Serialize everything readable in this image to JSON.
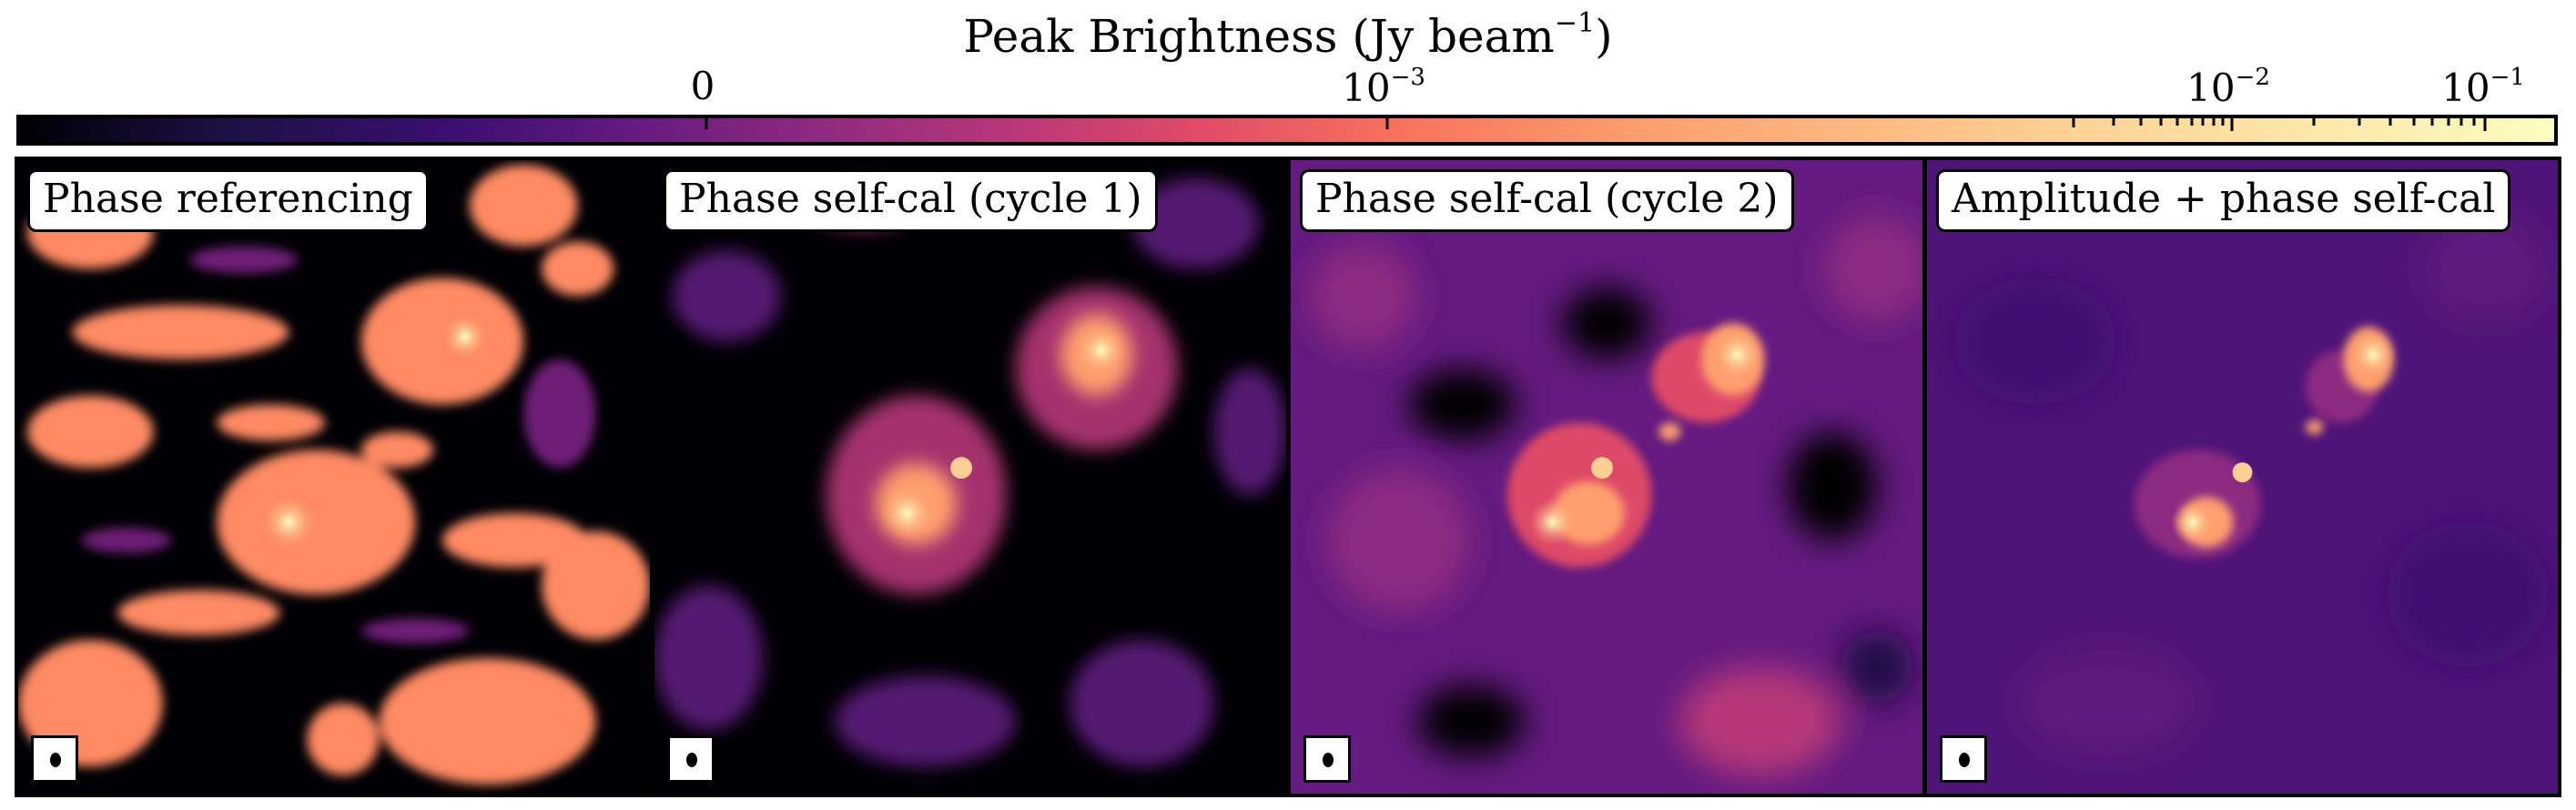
{
  "colorbar": {
    "title": "Peak Brightness (Jy beam",
    "title_sup": "−1",
    "title_close": ")",
    "tick_zero": "0",
    "tick_1e3": "10",
    "tick_1e3_exp": "−3",
    "tick_1e2": "10",
    "tick_1e2_exp": "−2",
    "tick_1e1": "10",
    "tick_1e1_exp": "−1",
    "colormap": "magma"
  },
  "panels": [
    {
      "label": "Phase referencing"
    },
    {
      "label": "Phase self-cal (cycle 1)"
    },
    {
      "label": "Phase self-cal (cycle 2)"
    },
    {
      "label": "Amplitude + phase self-cal"
    }
  ]
}
